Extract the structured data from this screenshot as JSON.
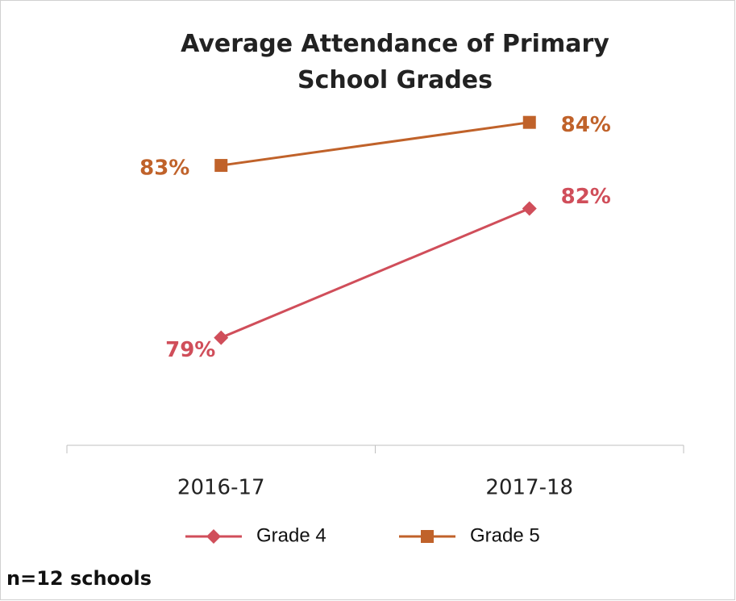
{
  "chart_data": {
    "type": "line",
    "title": "Average Attendance of Primary School Grades",
    "categories": [
      "2016-17",
      "2017-18"
    ],
    "series": [
      {
        "name": "Grade 4",
        "color": "#d04e5a",
        "marker": "diamond",
        "values": [
          79,
          82
        ],
        "value_labels": [
          "79%",
          "82%"
        ]
      },
      {
        "name": "Grade 5",
        "color": "#c0622a",
        "marker": "square",
        "values": [
          83,
          84
        ],
        "value_labels": [
          "83%",
          "84%"
        ]
      }
    ],
    "ylim": [
      76.5,
      84.5
    ],
    "legend": "bottom",
    "note": "n=12 schools"
  }
}
